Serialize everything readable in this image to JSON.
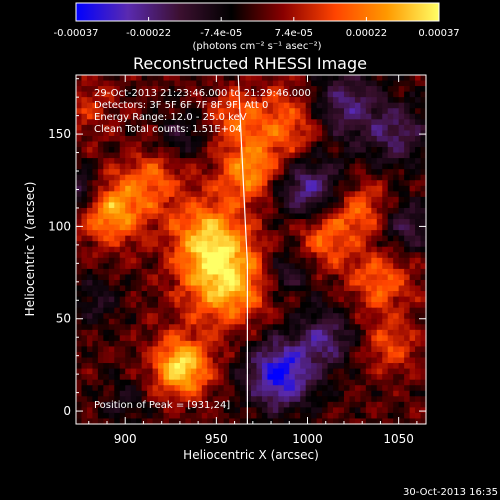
{
  "chart_data": {
    "type": "heatmap",
    "title": "Reconstructed RHESSI Image",
    "xlabel": "Heliocentric X (arcsec)",
    "ylabel": "Heliocentric Y (arcsec)",
    "xlim": [
      873,
      1065
    ],
    "ylim": [
      -7,
      182
    ],
    "x_ticks": [
      900,
      950,
      1000,
      1050
    ],
    "y_ticks": [
      0,
      50,
      100,
      150
    ],
    "colorbar": {
      "range": [
        -0.00037,
        0.00037
      ],
      "ticks": [
        "-0.00037",
        "-0.00022",
        "-7.4e-05",
        "7.4e-05",
        "0.00022",
        "0.00037"
      ],
      "unit_label": "(photons cm⁻² s⁻¹ asec⁻²)",
      "colormap": [
        "#0000ff",
        "#5a2ab0",
        "#3c1030",
        "#000000",
        "#8a0000",
        "#ff4400",
        "#ff9900",
        "#ffff66"
      ]
    },
    "annotations": [
      "29-Oct-2013 21:23:46.000 to 21:29:46.000",
      "Detectors: 3F 5F 6F 7F 8F 9F, Att 0",
      "Energy Range: 12.0 - 25.0 keV",
      "Clean      Total counts: 1.51E+04"
    ],
    "peak_label": "Position of Peak = [931,24]",
    "peak": [
      931,
      24
    ],
    "limb": {
      "points": [
        [
          962,
          182
        ],
        [
          963,
          160
        ],
        [
          964,
          140
        ],
        [
          965,
          120
        ],
        [
          966,
          100
        ],
        [
          967,
          80
        ],
        [
          967,
          60
        ],
        [
          967,
          40
        ],
        [
          967,
          20
        ],
        [
          967,
          0
        ],
        [
          967,
          -7
        ]
      ]
    },
    "grid": false,
    "legend": "none"
  },
  "footer": {
    "timestamp": "30-Oct-2013 16:35"
  }
}
